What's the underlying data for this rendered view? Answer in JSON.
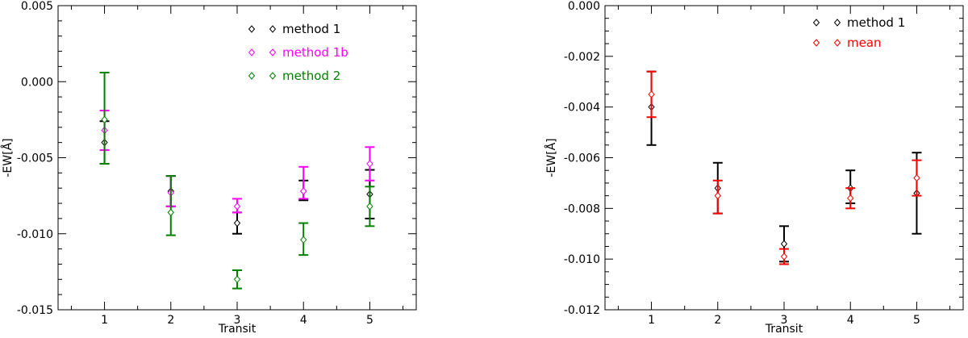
{
  "chart_data": [
    {
      "type": "scatter",
      "error_bars": true,
      "xlabel": "Transit",
      "ylabel": "-EW[Å]",
      "xlim": [
        0.3,
        5.7
      ],
      "ylim": [
        -0.015,
        0.005
      ],
      "x_ticks": [
        1,
        2,
        3,
        4,
        5
      ],
      "x_tick_labels": [
        "1",
        "2",
        "3",
        "4",
        "5"
      ],
      "y_ticks": [
        -0.015,
        -0.01,
        -0.005,
        0.0,
        0.005
      ],
      "y_tick_labels": [
        "-0.015",
        "-0.010",
        "-0.005",
        "0.000",
        "0.005"
      ],
      "y_minor_step": 0.001,
      "legend_position": "top-right",
      "grid": false,
      "series": [
        {
          "name": "method 1",
          "color": "#000000",
          "x": [
            1,
            2,
            3,
            4,
            5
          ],
          "y": [
            -0.004,
            -0.0072,
            -0.0093,
            -0.0072,
            -0.0074
          ],
          "err_low": [
            -0.0054,
            -0.0082,
            -0.01,
            -0.0078,
            -0.009
          ],
          "err_high": [
            -0.0026,
            -0.0062,
            -0.0086,
            -0.0065,
            -0.0058
          ]
        },
        {
          "name": "method 1b",
          "color": "#ff00ff",
          "x": [
            1,
            2,
            3,
            4,
            5
          ],
          "y": [
            -0.0032,
            -0.0073,
            -0.0082,
            -0.0072,
            -0.0054
          ],
          "err_low": [
            -0.0045,
            -0.0082,
            -0.0086,
            -0.0077,
            -0.0065
          ],
          "err_high": [
            -0.0019,
            -0.0062,
            -0.0077,
            -0.0056,
            -0.0043
          ]
        },
        {
          "name": "method 2",
          "color": "#008000",
          "x": [
            1,
            2,
            3,
            4,
            5
          ],
          "y": [
            -0.0025,
            -0.0086,
            -0.013,
            -0.0104,
            -0.0082
          ],
          "err_low": [
            -0.0054,
            -0.0101,
            -0.0136,
            -0.0114,
            -0.0095
          ],
          "err_high": [
            0.0006,
            -0.0062,
            -0.0124,
            -0.0093,
            -0.0069
          ]
        }
      ]
    },
    {
      "type": "scatter",
      "error_bars": true,
      "xlabel": "Transit",
      "ylabel": "-EW[Å]",
      "xlim": [
        0.3,
        5.7
      ],
      "ylim": [
        -0.012,
        0.0
      ],
      "x_ticks": [
        1,
        2,
        3,
        4,
        5
      ],
      "x_tick_labels": [
        "1",
        "2",
        "3",
        "4",
        "5"
      ],
      "y_ticks": [
        -0.012,
        -0.01,
        -0.008,
        -0.006,
        -0.004,
        -0.002,
        0.0
      ],
      "y_tick_labels": [
        "-0.012",
        "-0.010",
        "-0.008",
        "-0.006",
        "-0.004",
        "-0.002",
        "0.000"
      ],
      "y_minor_step": 0.0005,
      "legend_position": "top-right",
      "grid": false,
      "series": [
        {
          "name": "method 1",
          "color": "#000000",
          "x": [
            1,
            2,
            3,
            4,
            5
          ],
          "y": [
            -0.004,
            -0.0072,
            -0.0094,
            -0.0072,
            -0.0074
          ],
          "err_low": [
            -0.0055,
            -0.0082,
            -0.0101,
            -0.0078,
            -0.009
          ],
          "err_high": [
            -0.0026,
            -0.0062,
            -0.0087,
            -0.0065,
            -0.0058
          ]
        },
        {
          "name": "mean",
          "color": "#ff0000",
          "x": [
            1,
            2,
            3,
            4,
            5
          ],
          "y": [
            -0.0035,
            -0.0075,
            -0.0099,
            -0.0076,
            -0.0068
          ],
          "err_low": [
            -0.0044,
            -0.0082,
            -0.0102,
            -0.008,
            -0.0075
          ],
          "err_high": [
            -0.0026,
            -0.0069,
            -0.0096,
            -0.0072,
            -0.0061
          ]
        }
      ]
    }
  ]
}
